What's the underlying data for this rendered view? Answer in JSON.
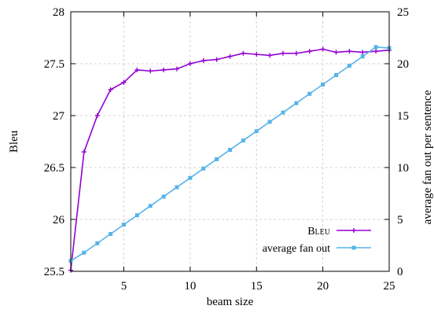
{
  "chart_data": {
    "type": "line",
    "xlabel": "beam size",
    "ylabel_left": "Bleu",
    "ylabel_right": "average fan out per sentence",
    "xlim": [
      1,
      25
    ],
    "ylim_left": [
      25.5,
      28
    ],
    "ylim_right": [
      0,
      25
    ],
    "x_ticks": [
      5,
      10,
      15,
      20,
      25
    ],
    "y_ticks_left": [
      25.5,
      26,
      26.5,
      27,
      27.5,
      28
    ],
    "y_ticks_right": [
      0,
      5,
      10,
      15,
      20,
      25
    ],
    "grid": true,
    "legend_position": "bottom-right",
    "x": [
      1,
      2,
      3,
      4,
      5,
      6,
      7,
      8,
      9,
      10,
      11,
      12,
      13,
      14,
      15,
      16,
      17,
      18,
      19,
      20,
      21,
      22,
      23,
      24,
      25
    ],
    "series": [
      {
        "name": "Bleu",
        "axis": "left",
        "color": "#9400d3",
        "marker": "plus",
        "values": [
          25.51,
          26.65,
          27.0,
          27.25,
          27.32,
          27.44,
          27.43,
          27.44,
          27.45,
          27.5,
          27.53,
          27.54,
          27.57,
          27.6,
          27.59,
          27.58,
          27.6,
          27.6,
          27.62,
          27.64,
          27.61,
          27.62,
          27.61,
          27.62,
          27.63
        ]
      },
      {
        "name": "average fan out",
        "axis": "right",
        "color": "#56b4e9",
        "marker": "square",
        "values": [
          1.0,
          1.8,
          2.7,
          3.6,
          4.5,
          5.4,
          6.3,
          7.2,
          8.1,
          9.0,
          9.9,
          10.8,
          11.7,
          12.6,
          13.5,
          14.4,
          15.3,
          16.2,
          17.1,
          18.0,
          18.9,
          19.8,
          20.7,
          21.6,
          21.5
        ]
      }
    ]
  },
  "legend": {
    "bleu_label": "Bleu",
    "fanout_label": "average fan out"
  }
}
